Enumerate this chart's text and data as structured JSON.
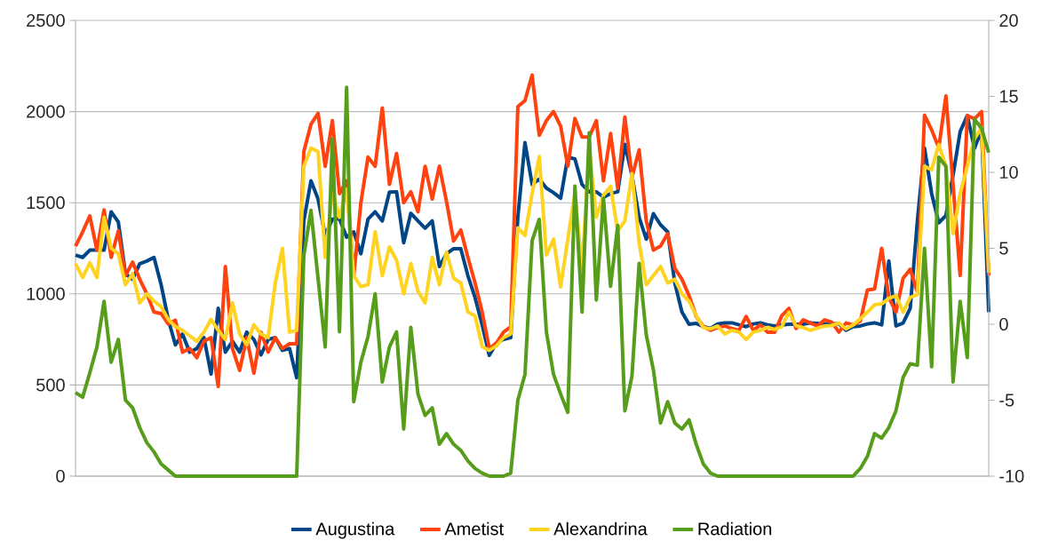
{
  "chart_data": {
    "type": "line",
    "categories": [
      null,
      null,
      null,
      null,
      null,
      null,
      null,
      null,
      null,
      null,
      null,
      null,
      null,
      null,
      null,
      null,
      null,
      null,
      null,
      null,
      null,
      null,
      null,
      null,
      null,
      null,
      null,
      null,
      null,
      null,
      null,
      null,
      null,
      null,
      null,
      null,
      null,
      null,
      null,
      null,
      null,
      null,
      null,
      null,
      null,
      null,
      null,
      null,
      null,
      null,
      null,
      null,
      null,
      null,
      null,
      null,
      null,
      null,
      null,
      null,
      null,
      null,
      null,
      null,
      null,
      null,
      null,
      null,
      null,
      null,
      null,
      null,
      null,
      null,
      null,
      null,
      null,
      null,
      null,
      null,
      null,
      null,
      null,
      null,
      null,
      null,
      null,
      null,
      null,
      null,
      null,
      null,
      null,
      null,
      null,
      null,
      null,
      null,
      null,
      null,
      null,
      null,
      null,
      null,
      null,
      null,
      null,
      null,
      null,
      null,
      null,
      null,
      null,
      null,
      null,
      null,
      null,
      null,
      null,
      null,
      null,
      null,
      null,
      null,
      null,
      null,
      null,
      null,
      null
    ],
    "series": [
      {
        "name": "Augustina",
        "color": "#004586",
        "values": [
          1213,
          1200,
          1240,
          1240,
          1240,
          1450,
          1394,
          1110,
          1080,
          1165,
          1180,
          1200,
          1050,
          860,
          720,
          780,
          680,
          700,
          760,
          560,
          921,
          680,
          740,
          680,
          790,
          750,
          665,
          750,
          760,
          690,
          700,
          540,
          1400,
          1620,
          1520,
          1320,
          1410,
          1412,
          1311,
          1340,
          1220,
          1410,
          1450,
          1400,
          1558,
          1560,
          1280,
          1442,
          1400,
          1360,
          1400,
          1150,
          1220,
          1248,
          1248,
          1100,
          980,
          830,
          663,
          730,
          750,
          760,
          1420,
          1830,
          1600,
          1630,
          1580,
          1555,
          1525,
          1750,
          1740,
          1600,
          1560,
          1560,
          1530,
          1550,
          1560,
          1820,
          1650,
          1420,
          1300,
          1440,
          1379,
          1340,
          1060,
          900,
          833,
          838,
          820,
          810,
          835,
          841,
          841,
          830,
          820,
          835,
          841,
          830,
          824,
          830,
          833,
          833,
          833,
          841,
          838,
          835,
          836,
          836,
          800,
          820,
          824,
          835,
          841,
          830,
          1180,
          824,
          840,
          920,
          1400,
          1800,
          1550,
          1390,
          1430,
          1650,
          1890,
          1978,
          1798,
          1900,
          900
        ]
      },
      {
        "name": "Ametist",
        "color": "#ff420e",
        "values": [
          1262,
          1340,
          1428,
          1240,
          1460,
          1200,
          1345,
          1100,
          1174,
          1080,
          1000,
          900,
          892,
          835,
          855,
          680,
          700,
          650,
          740,
          760,
          492,
          1150,
          700,
          580,
          760,
          565,
          790,
          680,
          760,
          700,
          726,
          726,
          1780,
          1930,
          1990,
          1700,
          1950,
          1550,
          1620,
          1100,
          1500,
          1750,
          1700,
          2020,
          1600,
          1770,
          1500,
          1560,
          1450,
          1700,
          1520,
          1700,
          1506,
          1290,
          1350,
          1200,
          1060,
          900,
          700,
          730,
          790,
          820,
          2027,
          2060,
          2200,
          1870,
          1950,
          2000,
          1920,
          1700,
          1962,
          1860,
          1860,
          1950,
          1620,
          1880,
          1580,
          1970,
          1640,
          1790,
          1400,
          1240,
          1262,
          1330,
          1140,
          1080,
          990,
          876,
          820,
          800,
          815,
          824,
          810,
          800,
          876,
          800,
          830,
          790,
          790,
          880,
          920,
          810,
          857,
          840,
          824,
          857,
          845,
          790,
          840,
          830,
          850,
          1021,
          1027,
          1250,
          980,
          900,
          1085,
          1135,
          1010,
          1980,
          1900,
          1800,
          2086,
          1600,
          1101,
          1978,
          1960,
          2000,
          1100
        ]
      },
      {
        "name": "Alexandrina",
        "color": "#ffd320",
        "values": [
          1165,
          1090,
          1170,
          1090,
          1420,
          1250,
          1220,
          1050,
          1110,
          950,
          1000,
          960,
          930,
          860,
          820,
          800,
          770,
          740,
          790,
          860,
          800,
          750,
          950,
          780,
          720,
          830,
          780,
          760,
          1060,
          1250,
          790,
          800,
          1700,
          1800,
          1780,
          1200,
          1560,
          1420,
          1574,
          1100,
          1040,
          1050,
          1340,
          1100,
          1257,
          1184,
          1000,
          1166,
          1015,
          950,
          1200,
          1050,
          1230,
          1085,
          1060,
          900,
          880,
          710,
          690,
          715,
          760,
          780,
          1362,
          1320,
          1550,
          1753,
          1213,
          1300,
          1038,
          1300,
          1550,
          1135,
          1800,
          1420,
          1540,
          1590,
          1345,
          1400,
          1660,
          1280,
          1050,
          1100,
          1150,
          1060,
          1080,
          1000,
          960,
          880,
          815,
          808,
          823,
          780,
          800,
          790,
          750,
          790,
          800,
          816,
          805,
          820,
          900,
          824,
          815,
          800,
          812,
          824,
          826,
          840,
          808,
          830,
          863,
          900,
          940,
          945,
          975,
          990,
          900,
          980,
          996,
          1700,
          1680,
          1820,
          1700,
          1330,
          1550,
          1700,
          1850,
          1913,
          1117
        ]
      },
      {
        "name": "Radiation",
        "color": "#579d1c",
        "axis": "y2",
        "values": [
          -4.5,
          -4.8,
          -3.2,
          -1.5,
          1.5,
          -2.5,
          -1.0,
          -5.0,
          -5.5,
          -6.8,
          -7.8,
          -8.4,
          -9.2,
          -9.6,
          -10,
          -10,
          -10,
          -10,
          -10,
          -10,
          -10,
          -10,
          -10,
          -10,
          -10,
          -10,
          -10,
          -10,
          -10,
          -10,
          -10,
          -10,
          4.5,
          7.5,
          3,
          -1.5,
          12.2,
          -0.5,
          15.6,
          -5.1,
          -2.5,
          -0.8,
          2.0,
          -3.8,
          -1.5,
          -0.5,
          -6.9,
          -0.2,
          -4.6,
          -6,
          -5.5,
          -7.9,
          -7.2,
          -7.9,
          -8.3,
          -9.0,
          -9.5,
          -9.8,
          -10,
          -10,
          -10,
          -9.8,
          -5,
          -3.3,
          5.5,
          6.9,
          -0.5,
          -3.3,
          -4.6,
          -5.8,
          9.1,
          0.8,
          12.6,
          1.6,
          8.3,
          2.5,
          6.5,
          -5.7,
          -3.4,
          4.0,
          -0.7,
          -3.0,
          -6.5,
          -5.1,
          -6.5,
          -6.9,
          -6.3,
          -7.9,
          -9.2,
          -9.8,
          -10,
          -10,
          -10,
          -10,
          -10,
          -10,
          -10,
          -10,
          -10,
          -10,
          -10,
          -10,
          -10,
          -10,
          -10,
          -10,
          -10,
          -10,
          -10,
          -10,
          -9.5,
          -8.7,
          -7.2,
          -7.5,
          -6.8,
          -5.7,
          -3.5,
          -2.6,
          -2.7,
          5,
          -2.8,
          11,
          10.4,
          -3.8,
          1.5,
          -2.2,
          13.5,
          12.9,
          11.3
        ]
      }
    ],
    "ylim": [
      0,
      2500
    ],
    "yticks": [
      0,
      500,
      1000,
      1500,
      2000,
      2500
    ],
    "y2lim": [
      -10,
      20
    ],
    "y2ticks": [
      -10,
      -5,
      0,
      5,
      10,
      15,
      20
    ],
    "grid": "y",
    "legend": "bottom"
  }
}
